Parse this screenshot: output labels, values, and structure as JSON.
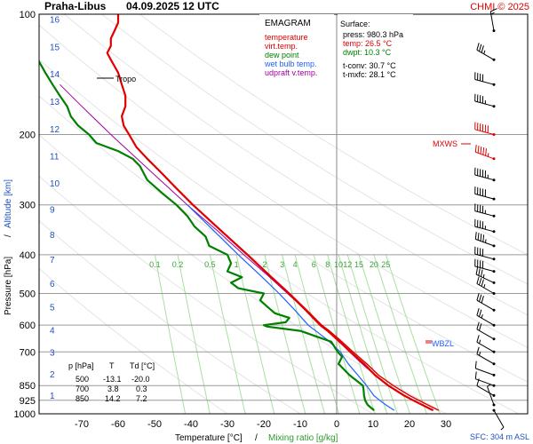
{
  "header": {
    "station": "Praha-Libus",
    "datetime": "04.09.2025 12 UTC",
    "credit": "CHMI © 2025"
  },
  "legend": {
    "title": "EMAGRAM",
    "items": [
      {
        "label": "temperature",
        "color": "#e00000"
      },
      {
        "label": "virt.temp.",
        "color": "#e00000"
      },
      {
        "label": "dew point",
        "color": "#008000"
      },
      {
        "label": "wet bulb temp.",
        "color": "#2060ff"
      },
      {
        "label": "udpraft v.temp.",
        "color": "#a000a0"
      }
    ]
  },
  "surface": {
    "title": "Surface:",
    "press": "press: 980.3 hPa",
    "temp": "temp: 26.5 °C",
    "dwpt": "dwpt: 10.3 °C",
    "tconv": "t-conv: 30.7 °C",
    "tmxfc": "t-mxfc: 28.1 °C",
    "temp_color": "#e00000",
    "dwpt_color": "#008000"
  },
  "levels_table": {
    "headers": [
      "p [hPa]",
      "T",
      "Td [°C]"
    ],
    "rows": [
      [
        "500",
        "-13.1",
        "-20.0"
      ],
      [
        "700",
        "3.8",
        "0.3"
      ],
      [
        "850",
        "14.2",
        "7.2"
      ]
    ]
  },
  "annotations": {
    "tropo": "Tropo",
    "mxws": "MXWS",
    "wbzl": "WBZL",
    "sfc": "SFC: 304 m ASL"
  },
  "chart_data": {
    "type": "line",
    "xlabel": "Temperature [°C]",
    "xlabel_sep": "/",
    "xlabel2": "Mixing ratio [g/kg]",
    "ylabel": "Pressure [hPa]",
    "ylabel_sep": "/",
    "ylabel2": "Altitude [km]",
    "x_ticks": [
      -70,
      -60,
      -50,
      -40,
      -30,
      -20,
      -10,
      0,
      10,
      20,
      30
    ],
    "y_ticks": [
      100,
      200,
      300,
      400,
      500,
      600,
      700,
      850,
      925,
      1000
    ],
    "y_scale": "log",
    "xlim": [
      -80,
      33
    ],
    "ylim": [
      1000,
      100
    ],
    "altitude_km": [
      1,
      2,
      3,
      4,
      5,
      6,
      7,
      8,
      9,
      10,
      11,
      12,
      13,
      14,
      15,
      16
    ],
    "mixing_ratio_labels": [
      "0.1",
      "0.2",
      "0.5",
      "1",
      "2",
      "3",
      "4",
      "6",
      "8",
      "10",
      "12",
      "15",
      "20",
      "25"
    ],
    "series": [
      {
        "name": "temperature",
        "color": "#e00000",
        "p": [
          980,
          950,
          925,
          900,
          850,
          800,
          750,
          700,
          650,
          620,
          600,
          550,
          500,
          450,
          400,
          350,
          300,
          270,
          250,
          230,
          215,
          200,
          190,
          180,
          170,
          160,
          150,
          140,
          130,
          125,
          120,
          115,
          110,
          105,
          100
        ],
        "t": [
          26.5,
          23.5,
          21,
          18.5,
          14.2,
          10.5,
          7.5,
          3.8,
          0,
          -2.5,
          -4.5,
          -8.5,
          -13.1,
          -18.5,
          -24.5,
          -31.5,
          -39.5,
          -44.5,
          -48,
          -52,
          -55,
          -57,
          -58.5,
          -59,
          -58,
          -58,
          -59,
          -60,
          -62,
          -63,
          -62,
          -62,
          -61,
          -60,
          -60
        ]
      },
      {
        "name": "virt.temp.",
        "color": "#e00000",
        "p": [
          980,
          950,
          925,
          900,
          850,
          800,
          750,
          700,
          650,
          620,
          600,
          550,
          500,
          450,
          400,
          350,
          300,
          270,
          250
        ],
        "t": [
          28,
          25,
          22.5,
          20,
          15.5,
          11.5,
          8.3,
          4.5,
          0.6,
          -2,
          -4.1,
          -8.2,
          -12.9,
          -18.4,
          -24.4,
          -31.4,
          -39.4,
          -44.4,
          -48
        ]
      },
      {
        "name": "dew point",
        "color": "#008000",
        "p": [
          980,
          950,
          925,
          900,
          870,
          850,
          800,
          750,
          720,
          700,
          660,
          620,
          605,
          600,
          590,
          575,
          560,
          540,
          520,
          500,
          485,
          470,
          455,
          440,
          420,
          400,
          380,
          360,
          340,
          320,
          300,
          280,
          260,
          240,
          230,
          220,
          215,
          210,
          200,
          190,
          180,
          170,
          160,
          150,
          140,
          130,
          120,
          110,
          100
        ],
        "t": [
          10.3,
          8.5,
          7.8,
          7.5,
          7.4,
          7.2,
          3.5,
          0.5,
          1.5,
          0.3,
          -1.5,
          -10,
          -19,
          -20,
          -14,
          -13,
          -17,
          -19,
          -21,
          -20,
          -27,
          -29,
          -26,
          -30,
          -29,
          -30,
          -35,
          -36,
          -39,
          -41,
          -44,
          -48,
          -52,
          -54,
          -56,
          -60,
          -63,
          -66,
          -68,
          -71,
          -73,
          -74,
          -76,
          -78,
          -80,
          -82,
          -84,
          -86,
          -88
        ]
      },
      {
        "name": "wet bulb temp.",
        "color": "#2060ff",
        "p": [
          980,
          950,
          925,
          900,
          850,
          800,
          750,
          700,
          650,
          600,
          550,
          500,
          450,
          400,
          350,
          300
        ],
        "t": [
          15.8,
          13.5,
          11.8,
          10.2,
          8.2,
          5.8,
          3.2,
          1,
          -2.8,
          -7.8,
          -11.5,
          -15.8,
          -21,
          -27,
          -33.5,
          -41
        ]
      },
      {
        "name": "udpraft v.temp.",
        "color": "#a000a0",
        "p": [
          980,
          950,
          925,
          900,
          850,
          800,
          750,
          700,
          650,
          600,
          550,
          500,
          450,
          400,
          350,
          300,
          250,
          200,
          170,
          150
        ],
        "t": [
          26.5,
          23.5,
          21,
          18.3,
          14,
          10.5,
          7,
          3.5,
          0,
          -4,
          -8.5,
          -13.5,
          -19,
          -25.5,
          -32.5,
          -41,
          -50.5,
          -62,
          -70,
          -76
        ]
      }
    ],
    "wind_barbs": {
      "p": [
        110,
        130,
        150,
        170,
        200,
        230,
        260,
        290,
        320,
        350,
        380,
        410,
        440,
        470,
        500,
        550,
        600,
        650,
        700,
        750,
        800,
        850,
        900,
        950,
        980
      ],
      "dir_deg": [
        350,
        300,
        285,
        285,
        285,
        290,
        285,
        285,
        285,
        285,
        290,
        285,
        285,
        295,
        300,
        300,
        300,
        300,
        300,
        300,
        290,
        290,
        300,
        340,
        150
      ],
      "speed_kt": [
        15,
        35,
        40,
        45,
        60,
        55,
        55,
        50,
        45,
        45,
        45,
        40,
        40,
        35,
        35,
        30,
        25,
        20,
        15,
        15,
        12,
        10,
        10,
        5,
        5
      ]
    }
  }
}
